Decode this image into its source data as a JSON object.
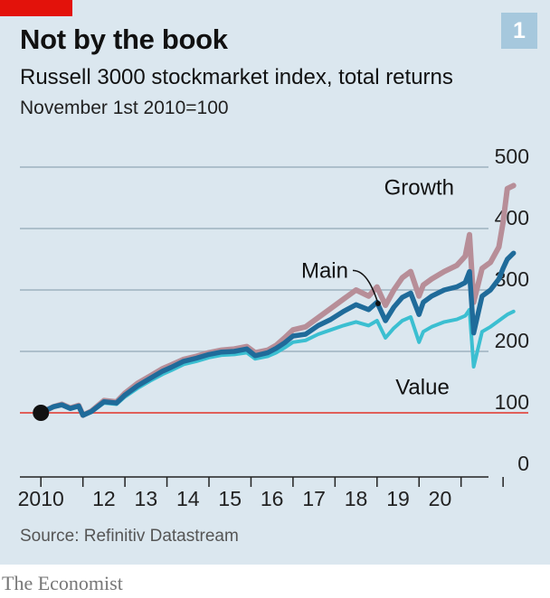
{
  "badge": "1",
  "title": "Not by the book",
  "subtitle": "Russell 3000 stockmarket index, total returns",
  "note": "November 1st 2010=100",
  "source": "Source: Refinitiv Datastream",
  "brand": "The Economist",
  "chart_data": {
    "type": "line",
    "title": "Not by the book",
    "subtitle": "Russell 3000 stockmarket index, total returns",
    "xlabel": "",
    "ylabel": "",
    "ylim": [
      0,
      500
    ],
    "xlim": [
      2009.5,
      2021.6
    ],
    "yticks": [
      0,
      100,
      200,
      300,
      400,
      500
    ],
    "xtick_values": [
      2010,
      2011,
      2012,
      2013,
      2014,
      2015,
      2016,
      2017,
      2018,
      2019,
      2020,
      2021
    ],
    "xtick_labels": [
      "2010",
      "12",
      "13",
      "14",
      "15",
      "16",
      "17",
      "18",
      "19",
      "20"
    ],
    "xtick_label_positions": [
      2010.0,
      2011.5,
      2012.5,
      2013.5,
      2014.5,
      2015.5,
      2016.5,
      2017.5,
      2018.5,
      2019.5
    ],
    "reference_line": 100,
    "start_point": {
      "x": 2010.0,
      "y": 100
    },
    "grid": true,
    "colors": {
      "growth": "#b78e98",
      "main": "#1f6b9a",
      "value": "#3bbfd1",
      "reference": "#e0605a",
      "grid": "#9eb2bf",
      "axis": "#222222",
      "marker": "#111111"
    },
    "annotations": [
      {
        "series": "Growth",
        "text": "Growth"
      },
      {
        "series": "Main",
        "text": "Main"
      },
      {
        "series": "Value",
        "text": "Value"
      }
    ],
    "series": [
      {
        "name": "Growth",
        "x": [
          2010.0,
          2010.3,
          2010.5,
          2010.7,
          2010.9,
          2011.0,
          2011.2,
          2011.5,
          2011.8,
          2012.0,
          2012.3,
          2012.6,
          2012.9,
          2013.1,
          2013.4,
          2013.7,
          2014.0,
          2014.3,
          2014.6,
          2014.9,
          2015.1,
          2015.4,
          2015.6,
          2015.8,
          2016.0,
          2016.3,
          2016.6,
          2016.9,
          2017.2,
          2017.5,
          2017.8,
          2018.0,
          2018.2,
          2018.4,
          2018.6,
          2018.8,
          2019.0,
          2019.1,
          2019.3,
          2019.6,
          2019.9,
          2020.1,
          2020.2,
          2020.3,
          2020.5,
          2020.7,
          2020.9,
          2021.0,
          2021.1,
          2021.25
        ],
        "values": [
          100,
          110,
          114,
          108,
          112,
          96,
          103,
          120,
          118,
          132,
          148,
          160,
          172,
          178,
          187,
          192,
          198,
          202,
          204,
          208,
          198,
          202,
          210,
          222,
          235,
          240,
          255,
          270,
          285,
          300,
          290,
          305,
          275,
          300,
          320,
          330,
          290,
          308,
          318,
          330,
          340,
          355,
          390,
          280,
          335,
          345,
          370,
          410,
          465,
          470
        ]
      },
      {
        "name": "Main",
        "x": [
          2010.0,
          2010.3,
          2010.5,
          2010.7,
          2010.9,
          2011.0,
          2011.2,
          2011.5,
          2011.8,
          2012.0,
          2012.3,
          2012.6,
          2012.9,
          2013.1,
          2013.4,
          2013.7,
          2014.0,
          2014.3,
          2014.6,
          2014.9,
          2015.1,
          2015.4,
          2015.6,
          2015.8,
          2016.0,
          2016.3,
          2016.6,
          2016.9,
          2017.2,
          2017.5,
          2017.8,
          2018.0,
          2018.2,
          2018.4,
          2018.6,
          2018.8,
          2019.0,
          2019.1,
          2019.3,
          2019.6,
          2019.9,
          2020.1,
          2020.2,
          2020.3,
          2020.5,
          2020.7,
          2020.9,
          2021.0,
          2021.1,
          2021.25
        ],
        "values": [
          100,
          110,
          113,
          107,
          111,
          96,
          102,
          118,
          116,
          129,
          144,
          156,
          168,
          174,
          184,
          189,
          195,
          199,
          200,
          204,
          193,
          198,
          205,
          214,
          225,
          228,
          242,
          252,
          265,
          276,
          268,
          280,
          250,
          272,
          288,
          295,
          260,
          280,
          290,
          300,
          305,
          312,
          330,
          230,
          290,
          300,
          318,
          335,
          350,
          360
        ]
      },
      {
        "name": "Value",
        "x": [
          2010.0,
          2010.3,
          2010.5,
          2010.7,
          2010.9,
          2011.0,
          2011.2,
          2011.5,
          2011.8,
          2012.0,
          2012.3,
          2012.6,
          2012.9,
          2013.1,
          2013.4,
          2013.7,
          2014.0,
          2014.3,
          2014.6,
          2014.9,
          2015.1,
          2015.4,
          2015.6,
          2015.8,
          2016.0,
          2016.3,
          2016.6,
          2016.9,
          2017.2,
          2017.5,
          2017.8,
          2018.0,
          2018.2,
          2018.4,
          2018.6,
          2018.8,
          2019.0,
          2019.1,
          2019.3,
          2019.6,
          2019.9,
          2020.1,
          2020.2,
          2020.3,
          2020.5,
          2020.7,
          2020.9,
          2021.0,
          2021.1,
          2021.25
        ],
        "values": [
          100,
          109,
          112,
          106,
          110,
          95,
          101,
          116,
          114,
          126,
          140,
          152,
          163,
          169,
          179,
          184,
          190,
          194,
          195,
          198,
          188,
          192,
          198,
          206,
          215,
          218,
          228,
          235,
          242,
          248,
          242,
          250,
          222,
          238,
          250,
          256,
          215,
          232,
          240,
          248,
          252,
          258,
          268,
          175,
          232,
          240,
          250,
          255,
          260,
          265
        ]
      }
    ]
  }
}
